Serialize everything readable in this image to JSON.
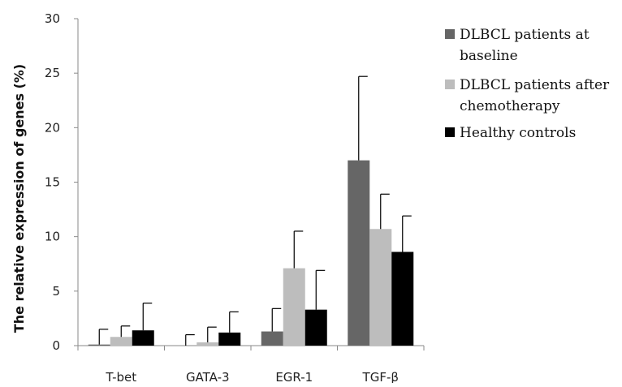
{
  "chart_data": {
    "type": "bar",
    "title": "",
    "xlabel": "",
    "ylabel": "The relative expression of genes (%)",
    "categories": [
      "T-bet",
      "GATA-3",
      "EGR-1",
      "TGF-β"
    ],
    "ylim": [
      0,
      30
    ],
    "yticks": [
      0,
      5,
      10,
      15,
      20,
      25,
      30
    ],
    "grid": false,
    "legend_position": "top-right",
    "series": [
      {
        "name": "DLBCL patients at baseline",
        "legend_lines": [
          "DLBCL patients at",
          "baseline"
        ],
        "color": "#666666",
        "values": [
          0.1,
          0.0,
          1.3,
          17.0
        ],
        "errors": [
          1.4,
          1.0,
          2.1,
          7.7
        ]
      },
      {
        "name": "DLBCL patients after chemotherapy",
        "legend_lines": [
          "DLBCL patients after",
          "chemotherapy"
        ],
        "color": "#bdbdbd",
        "values": [
          0.8,
          0.3,
          7.1,
          10.7
        ],
        "errors": [
          1.0,
          1.4,
          3.4,
          3.2
        ]
      },
      {
        "name": "Healthy controls",
        "legend_lines": [
          "Healthy controls"
        ],
        "color": "#000000",
        "values": [
          1.4,
          1.2,
          3.3,
          8.6
        ],
        "errors": [
          2.5,
          1.9,
          3.6,
          3.3
        ]
      }
    ]
  }
}
